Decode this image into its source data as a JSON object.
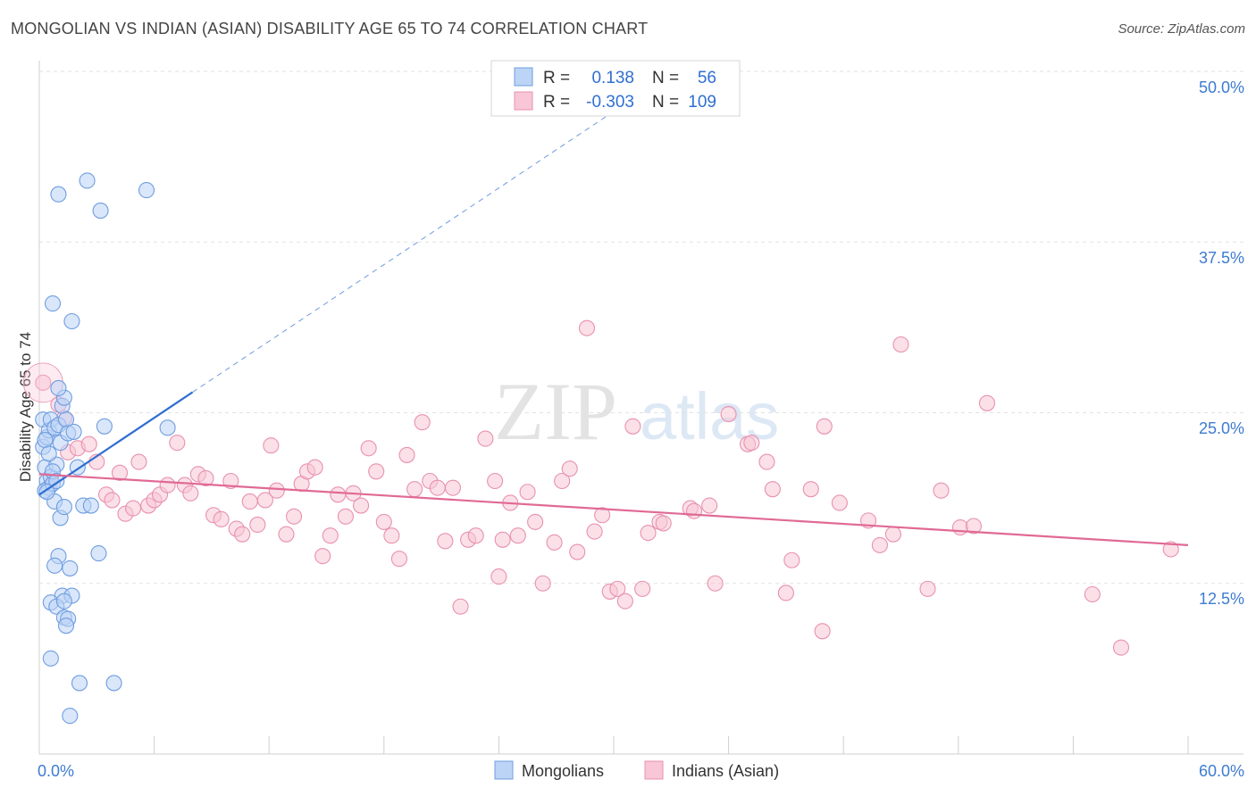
{
  "chart_data": {
    "type": "scatter",
    "title": "MONGOLIAN VS INDIAN (ASIAN) DISABILITY AGE 65 TO 74 CORRELATION CHART",
    "source": "Source: ZipAtlas.com",
    "xlabel": "",
    "ylabel": "Disability Age 65 to 74",
    "xlim": [
      0,
      60
    ],
    "ylim": [
      0,
      50
    ],
    "x_tick_labels": [
      "0.0%",
      "60.0%"
    ],
    "y_ticks": [
      12.5,
      25.0,
      37.5,
      50.0
    ],
    "y_tick_labels": [
      "12.5%",
      "25.0%",
      "37.5%",
      "50.0%"
    ],
    "grid": true,
    "watermark": {
      "part1": "ZIP",
      "part2": "atlas"
    },
    "legend": {
      "rows": [
        {
          "r_label": "R =",
          "r_value": "0.138",
          "n_label": "N =",
          "n_value": "56"
        },
        {
          "r_label": "R =",
          "r_value": "-0.303",
          "n_label": "N =",
          "n_value": "109"
        }
      ]
    },
    "colors": {
      "mongolians_fill": "#bcd4f5",
      "mongolians_stroke": "#6f9de0",
      "mongolians_line": "#2f6fd1",
      "indians_fill": "#f8c6d6",
      "indians_stroke": "#e891b0",
      "indians_line": "#e06a95"
    },
    "series": [
      {
        "name": "Mongolians",
        "trend": {
          "x1": 0.0,
          "y1": 19.0,
          "x2": 8.0,
          "y2": 26.5,
          "dash_x2": 31.0,
          "dash_y2": 48.0
        },
        "points": [
          [
            0.2,
            22.5
          ],
          [
            0.3,
            21.0
          ],
          [
            0.4,
            20.0
          ],
          [
            0.5,
            19.5
          ],
          [
            0.3,
            19.3
          ],
          [
            0.6,
            20.3
          ],
          [
            0.7,
            19.8
          ],
          [
            0.2,
            24.5
          ],
          [
            0.4,
            23.2
          ],
          [
            0.5,
            23.7
          ],
          [
            0.6,
            24.5
          ],
          [
            0.8,
            23.9
          ],
          [
            1.0,
            24.1
          ],
          [
            1.1,
            22.8
          ],
          [
            1.2,
            25.5
          ],
          [
            1.3,
            26.1
          ],
          [
            1.4,
            24.5
          ],
          [
            1.5,
            23.5
          ],
          [
            1.0,
            26.8
          ],
          [
            0.9,
            21.2
          ],
          [
            0.8,
            18.5
          ],
          [
            1.1,
            17.3
          ],
          [
            1.3,
            18.1
          ],
          [
            2.0,
            21.0
          ],
          [
            2.3,
            18.2
          ],
          [
            2.7,
            18.2
          ],
          [
            3.4,
            24.0
          ],
          [
            6.7,
            23.9
          ],
          [
            1.0,
            41.0
          ],
          [
            2.5,
            42.0
          ],
          [
            3.2,
            39.8
          ],
          [
            5.6,
            41.3
          ],
          [
            0.7,
            33.0
          ],
          [
            1.7,
            31.7
          ],
          [
            1.0,
            14.5
          ],
          [
            0.8,
            13.8
          ],
          [
            1.6,
            13.6
          ],
          [
            3.1,
            14.7
          ],
          [
            1.2,
            11.6
          ],
          [
            1.7,
            11.6
          ],
          [
            0.6,
            11.1
          ],
          [
            0.9,
            10.8
          ],
          [
            1.3,
            11.2
          ],
          [
            1.3,
            10.0
          ],
          [
            1.5,
            9.9
          ],
          [
            1.4,
            9.4
          ],
          [
            0.6,
            7.0
          ],
          [
            2.1,
            5.2
          ],
          [
            3.9,
            5.2
          ],
          [
            1.6,
            2.8
          ],
          [
            0.3,
            23.0
          ],
          [
            0.5,
            22.0
          ],
          [
            0.7,
            20.7
          ],
          [
            0.9,
            20.0
          ],
          [
            1.8,
            23.6
          ],
          [
            0.4,
            19.2
          ]
        ]
      },
      {
        "name": "Indians (Asian)",
        "trend": {
          "x1": 0.0,
          "y1": 20.5,
          "x2": 60.0,
          "y2": 15.3
        },
        "points": [
          [
            0.2,
            27.2
          ],
          [
            1.0,
            25.6
          ],
          [
            1.3,
            24.6
          ],
          [
            1.5,
            22.1
          ],
          [
            2.0,
            22.4
          ],
          [
            2.6,
            22.7
          ],
          [
            3.0,
            21.4
          ],
          [
            3.5,
            19.0
          ],
          [
            3.8,
            18.6
          ],
          [
            4.2,
            20.6
          ],
          [
            4.5,
            17.6
          ],
          [
            4.9,
            18.0
          ],
          [
            5.2,
            21.4
          ],
          [
            5.7,
            18.2
          ],
          [
            6.0,
            18.6
          ],
          [
            6.3,
            19.0
          ],
          [
            6.7,
            19.7
          ],
          [
            7.2,
            22.8
          ],
          [
            7.6,
            19.7
          ],
          [
            7.9,
            19.1
          ],
          [
            8.3,
            20.5
          ],
          [
            8.7,
            20.2
          ],
          [
            9.1,
            17.5
          ],
          [
            9.5,
            17.2
          ],
          [
            10.0,
            20.0
          ],
          [
            10.3,
            16.5
          ],
          [
            10.6,
            16.1
          ],
          [
            11.0,
            18.5
          ],
          [
            11.4,
            16.8
          ],
          [
            11.8,
            18.6
          ],
          [
            12.1,
            22.6
          ],
          [
            12.4,
            19.3
          ],
          [
            12.9,
            16.1
          ],
          [
            13.3,
            17.4
          ],
          [
            13.7,
            19.8
          ],
          [
            14.0,
            20.7
          ],
          [
            14.4,
            21.0
          ],
          [
            14.8,
            14.5
          ],
          [
            15.2,
            16.0
          ],
          [
            15.6,
            19.0
          ],
          [
            16.0,
            17.4
          ],
          [
            16.4,
            19.1
          ],
          [
            16.8,
            18.2
          ],
          [
            17.2,
            22.4
          ],
          [
            17.6,
            20.7
          ],
          [
            18.0,
            17.0
          ],
          [
            18.4,
            16.0
          ],
          [
            18.8,
            14.3
          ],
          [
            19.2,
            21.9
          ],
          [
            19.6,
            19.4
          ],
          [
            20.0,
            24.3
          ],
          [
            20.4,
            20.0
          ],
          [
            20.8,
            19.5
          ],
          [
            21.2,
            15.6
          ],
          [
            21.6,
            19.5
          ],
          [
            22.0,
            10.8
          ],
          [
            22.4,
            15.7
          ],
          [
            22.8,
            16.0
          ],
          [
            23.3,
            23.1
          ],
          [
            23.8,
            20.0
          ],
          [
            24.2,
            15.7
          ],
          [
            24.6,
            18.4
          ],
          [
            25.0,
            16.0
          ],
          [
            25.5,
            19.2
          ],
          [
            25.9,
            17.0
          ],
          [
            26.3,
            12.5
          ],
          [
            26.9,
            15.5
          ],
          [
            27.3,
            20.0
          ],
          [
            27.7,
            20.9
          ],
          [
            28.1,
            14.8
          ],
          [
            28.6,
            31.2
          ],
          [
            29.0,
            16.3
          ],
          [
            29.4,
            17.5
          ],
          [
            29.8,
            11.9
          ],
          [
            30.2,
            12.1
          ],
          [
            30.6,
            11.2
          ],
          [
            31.0,
            24.0
          ],
          [
            31.5,
            12.1
          ],
          [
            31.8,
            16.2
          ],
          [
            32.4,
            17.0
          ],
          [
            32.6,
            16.9
          ],
          [
            34.0,
            18.0
          ],
          [
            34.2,
            17.8
          ],
          [
            35.0,
            18.2
          ],
          [
            35.3,
            12.5
          ],
          [
            36.0,
            24.9
          ],
          [
            37.0,
            22.7
          ],
          [
            37.2,
            22.8
          ],
          [
            38.0,
            21.4
          ],
          [
            38.3,
            19.4
          ],
          [
            39.0,
            11.8
          ],
          [
            39.3,
            14.2
          ],
          [
            40.3,
            19.4
          ],
          [
            40.9,
            9.0
          ],
          [
            41.0,
            24.0
          ],
          [
            41.8,
            18.4
          ],
          [
            43.3,
            17.1
          ],
          [
            43.9,
            15.3
          ],
          [
            44.6,
            16.1
          ],
          [
            45.0,
            30.0
          ],
          [
            46.4,
            12.1
          ],
          [
            47.1,
            19.3
          ],
          [
            48.1,
            16.6
          ],
          [
            48.8,
            16.7
          ],
          [
            49.5,
            25.7
          ],
          [
            55.0,
            11.7
          ],
          [
            56.5,
            7.8
          ],
          [
            59.1,
            15.0
          ],
          [
            24.0,
            13.0
          ]
        ]
      }
    ]
  },
  "bottom_legend": {
    "series1": "Mongolians",
    "series2": "Indians (Asian)"
  }
}
